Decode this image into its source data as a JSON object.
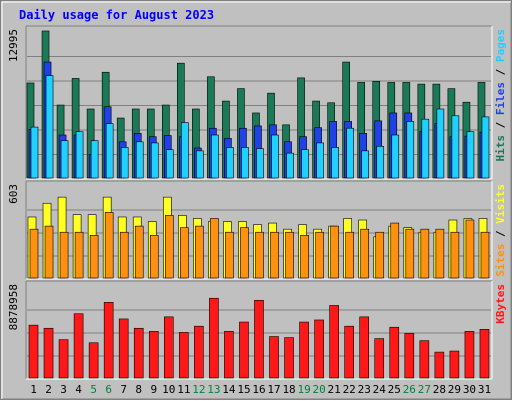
{
  "title": "Daily usage for August 2023",
  "colors": {
    "background": "#c0c0c0",
    "hits": "#1a7a58",
    "files": "#2040e8",
    "pages": "#20d0ff",
    "visits": "#ffff20",
    "sites": "#ff9010",
    "kbytes": "#ff1818",
    "weekday_label": "#000000",
    "weekend_label": "#008040"
  },
  "chart_data": [
    {
      "type": "bar",
      "panel": "hits-files-pages",
      "ymax_label": "12995",
      "ylim": [
        0,
        12995
      ],
      "categories": [
        "1",
        "2",
        "3",
        "4",
        "5",
        "6",
        "7",
        "8",
        "9",
        "10",
        "11",
        "12",
        "13",
        "14",
        "15",
        "16",
        "17",
        "18",
        "19",
        "20",
        "21",
        "22",
        "23",
        "24",
        "25",
        "26",
        "27",
        "28",
        "29",
        "30",
        "31"
      ],
      "weekend_days": [
        "5",
        "6",
        "12",
        "13",
        "19",
        "20",
        "26",
        "27"
      ],
      "right_label_parts": [
        {
          "text": "Hits",
          "color": "#1a7a58"
        },
        {
          "text": " / ",
          "color": "#000000"
        },
        {
          "text": "Files",
          "color": "#2040e8"
        },
        {
          "text": " / ",
          "color": "#000000"
        },
        {
          "text": "Pages",
          "color": "#20d0ff"
        }
      ],
      "series": [
        {
          "name": "Hits",
          "values": [
            8400,
            12995,
            6450,
            8800,
            6100,
            9350,
            5300,
            6100,
            6100,
            6450,
            10150,
            6100,
            8950,
            6800,
            7900,
            5750,
            7500,
            4700,
            8850,
            6800,
            6650,
            10250,
            8450,
            8550,
            8450,
            8450,
            8300,
            8300,
            7900,
            6700,
            8450
          ]
        },
        {
          "name": "Files",
          "values": [
            4300,
            10250,
            3800,
            3800,
            2100,
            6300,
            3200,
            3950,
            3650,
            3750,
            3650,
            2650,
            4400,
            3500,
            4400,
            4600,
            4700,
            3200,
            3650,
            4450,
            5000,
            5000,
            3950,
            5050,
            5750,
            5750,
            4100,
            4800,
            3650,
            3700,
            4050
          ]
        },
        {
          "name": "Pages",
          "values": [
            4500,
            9050,
            3300,
            4100,
            3300,
            4800,
            2700,
            3200,
            3100,
            2500,
            4900,
            2400,
            3800,
            2700,
            2700,
            2600,
            3800,
            2200,
            2500,
            3100,
            2700,
            4400,
            2400,
            2800,
            3800,
            5000,
            5200,
            6100,
            5500,
            4100,
            5400
          ]
        }
      ]
    },
    {
      "type": "bar",
      "panel": "visits-sites",
      "ymax_label": "603",
      "ylim": [
        0,
        603
      ],
      "categories": [
        "1",
        "2",
        "3",
        "4",
        "5",
        "6",
        "7",
        "8",
        "9",
        "10",
        "11",
        "12",
        "13",
        "14",
        "15",
        "16",
        "17",
        "18",
        "19",
        "20",
        "21",
        "22",
        "23",
        "24",
        "25",
        "26",
        "27",
        "28",
        "29",
        "30",
        "31"
      ],
      "right_label_parts": [
        {
          "text": "Sites",
          "color": "#ff9010"
        },
        {
          "text": " / ",
          "color": "#000000"
        },
        {
          "text": "Visits",
          "color": "#ffff20"
        }
      ],
      "series": [
        {
          "name": "Visits",
          "values": [
            400,
            490,
            530,
            415,
            415,
            530,
            400,
            400,
            370,
            530,
            410,
            390,
            370,
            370,
            370,
            350,
            360,
            320,
            350,
            320,
            340,
            390,
            380,
            270,
            340,
            330,
            300,
            300,
            380,
            390,
            390
          ]
        },
        {
          "name": "Sites",
          "values": [
            320,
            340,
            300,
            300,
            280,
            430,
            300,
            340,
            280,
            410,
            330,
            340,
            390,
            300,
            330,
            300,
            300,
            300,
            280,
            300,
            340,
            300,
            320,
            300,
            360,
            320,
            320,
            320,
            300,
            380,
            300
          ]
        }
      ]
    },
    {
      "type": "bar",
      "panel": "kbytes",
      "ymax_label": "8878958",
      "ylim": [
        0,
        8878958
      ],
      "categories": [
        "1",
        "2",
        "3",
        "4",
        "5",
        "6",
        "7",
        "8",
        "9",
        "10",
        "11",
        "12",
        "13",
        "14",
        "15",
        "16",
        "17",
        "18",
        "19",
        "20",
        "21",
        "22",
        "23",
        "24",
        "25",
        "26",
        "27",
        "28",
        "29",
        "30",
        "31"
      ],
      "right_label_parts": [
        {
          "text": "KBytes",
          "color": "#ff1818"
        }
      ],
      "series": [
        {
          "name": "KBytes",
          "values": [
            5100,
            4800,
            3700,
            6200,
            3400,
            7300,
            5700,
            4800,
            4500,
            5900,
            4400,
            5000,
            7700,
            4500,
            5400,
            7500,
            4000,
            3900,
            5400,
            5600,
            7000,
            5000,
            5900,
            3800,
            4900,
            4300,
            3600,
            2500,
            2600,
            4500,
            4700
          ]
        }
      ]
    }
  ]
}
